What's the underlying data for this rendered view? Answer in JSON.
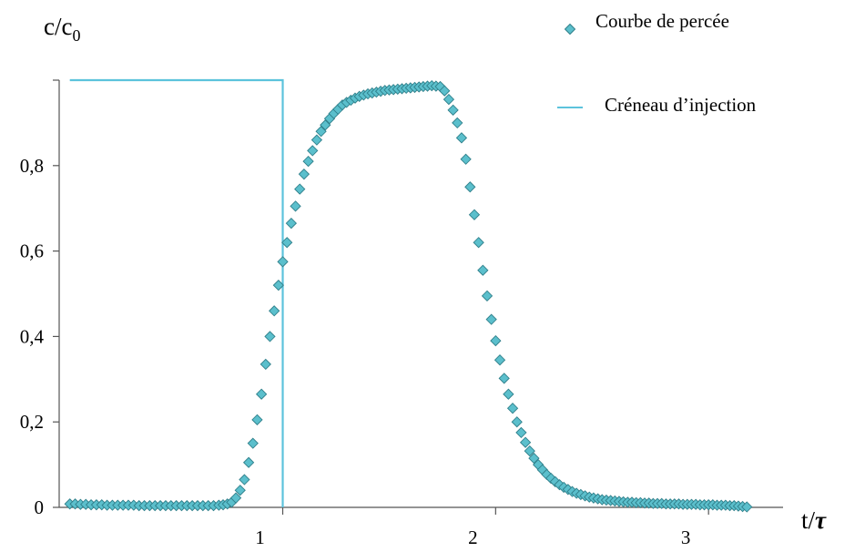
{
  "chart_data": {
    "type": "scatter",
    "ylabel": {
      "base": "c/c",
      "sub": "0"
    },
    "xlabel": {
      "base": "t/",
      "symbol": "τ"
    },
    "xlim": [
      -0.05,
      3.35
    ],
    "ylim": [
      0,
      1.0
    ],
    "x_ticks": [
      {
        "value": 1,
        "label": "1"
      },
      {
        "value": 2,
        "label": "2"
      },
      {
        "value": 3,
        "label": "3"
      }
    ],
    "y_ticks": [
      {
        "value": 0,
        "label": "0"
      },
      {
        "value": 0.2,
        "label": "0,2"
      },
      {
        "value": 0.4,
        "label": "0,4"
      },
      {
        "value": 0.6,
        "label": "0,6"
      },
      {
        "value": 0.8,
        "label": "0,8"
      },
      {
        "value": 1.0,
        "label": ""
      }
    ],
    "grid": false,
    "legend_position": "top-right",
    "colors": {
      "breakthrough_fill": "#5bbfcc",
      "breakthrough_stroke": "#2f7f8a",
      "injection_line": "#5cc3dc",
      "axis": "#555555"
    },
    "series": [
      {
        "name": "Courbe de percée",
        "kind": "scatter",
        "marker": "diamond",
        "points": [
          [
            0.0,
            0.008
          ],
          [
            0.025,
            0.008
          ],
          [
            0.05,
            0.007
          ],
          [
            0.075,
            0.007
          ],
          [
            0.1,
            0.006
          ],
          [
            0.125,
            0.006
          ],
          [
            0.15,
            0.006
          ],
          [
            0.175,
            0.005
          ],
          [
            0.2,
            0.005
          ],
          [
            0.225,
            0.005
          ],
          [
            0.25,
            0.005
          ],
          [
            0.275,
            0.005
          ],
          [
            0.3,
            0.005
          ],
          [
            0.325,
            0.004
          ],
          [
            0.35,
            0.004
          ],
          [
            0.375,
            0.004
          ],
          [
            0.4,
            0.004
          ],
          [
            0.425,
            0.004
          ],
          [
            0.45,
            0.004
          ],
          [
            0.475,
            0.004
          ],
          [
            0.5,
            0.004
          ],
          [
            0.525,
            0.004
          ],
          [
            0.55,
            0.004
          ],
          [
            0.575,
            0.004
          ],
          [
            0.6,
            0.004
          ],
          [
            0.625,
            0.004
          ],
          [
            0.65,
            0.004
          ],
          [
            0.675,
            0.004
          ],
          [
            0.7,
            0.005
          ],
          [
            0.72,
            0.006
          ],
          [
            0.74,
            0.008
          ],
          [
            0.76,
            0.012
          ],
          [
            0.78,
            0.022
          ],
          [
            0.8,
            0.04
          ],
          [
            0.82,
            0.065
          ],
          [
            0.84,
            0.105
          ],
          [
            0.86,
            0.15
          ],
          [
            0.88,
            0.205
          ],
          [
            0.9,
            0.265
          ],
          [
            0.92,
            0.335
          ],
          [
            0.94,
            0.4
          ],
          [
            0.96,
            0.46
          ],
          [
            0.98,
            0.52
          ],
          [
            1.0,
            0.575
          ],
          [
            1.02,
            0.62
          ],
          [
            1.04,
            0.665
          ],
          [
            1.06,
            0.705
          ],
          [
            1.08,
            0.745
          ],
          [
            1.1,
            0.78
          ],
          [
            1.12,
            0.81
          ],
          [
            1.14,
            0.835
          ],
          [
            1.16,
            0.86
          ],
          [
            1.18,
            0.88
          ],
          [
            1.2,
            0.895
          ],
          [
            1.22,
            0.91
          ],
          [
            1.24,
            0.922
          ],
          [
            1.26,
            0.932
          ],
          [
            1.28,
            0.942
          ],
          [
            1.3,
            0.948
          ],
          [
            1.32,
            0.953
          ],
          [
            1.34,
            0.958
          ],
          [
            1.36,
            0.962
          ],
          [
            1.38,
            0.965
          ],
          [
            1.4,
            0.968
          ],
          [
            1.42,
            0.97
          ],
          [
            1.44,
            0.972
          ],
          [
            1.46,
            0.974
          ],
          [
            1.48,
            0.976
          ],
          [
            1.5,
            0.977
          ],
          [
            1.52,
            0.978
          ],
          [
            1.54,
            0.979
          ],
          [
            1.56,
            0.98
          ],
          [
            1.58,
            0.981
          ],
          [
            1.6,
            0.982
          ],
          [
            1.62,
            0.983
          ],
          [
            1.64,
            0.984
          ],
          [
            1.66,
            0.985
          ],
          [
            1.68,
            0.986
          ],
          [
            1.7,
            0.987
          ],
          [
            1.72,
            0.986
          ],
          [
            1.74,
            0.985
          ],
          [
            1.76,
            0.975
          ],
          [
            1.78,
            0.955
          ],
          [
            1.8,
            0.93
          ],
          [
            1.82,
            0.9
          ],
          [
            1.84,
            0.865
          ],
          [
            1.86,
            0.815
          ],
          [
            1.88,
            0.75
          ],
          [
            1.9,
            0.685
          ],
          [
            1.92,
            0.62
          ],
          [
            1.94,
            0.555
          ],
          [
            1.96,
            0.495
          ],
          [
            1.98,
            0.44
          ],
          [
            2.0,
            0.39
          ],
          [
            2.02,
            0.345
          ],
          [
            2.04,
            0.302
          ],
          [
            2.06,
            0.265
          ],
          [
            2.08,
            0.232
          ],
          [
            2.1,
            0.2
          ],
          [
            2.12,
            0.175
          ],
          [
            2.14,
            0.152
          ],
          [
            2.16,
            0.132
          ],
          [
            2.18,
            0.115
          ],
          [
            2.2,
            0.1
          ],
          [
            2.22,
            0.088
          ],
          [
            2.24,
            0.077
          ],
          [
            2.26,
            0.068
          ],
          [
            2.28,
            0.06
          ],
          [
            2.3,
            0.053
          ],
          [
            2.32,
            0.047
          ],
          [
            2.34,
            0.042
          ],
          [
            2.36,
            0.037
          ],
          [
            2.38,
            0.033
          ],
          [
            2.4,
            0.03
          ],
          [
            2.42,
            0.027
          ],
          [
            2.44,
            0.024
          ],
          [
            2.46,
            0.022
          ],
          [
            2.48,
            0.02
          ],
          [
            2.5,
            0.018
          ],
          [
            2.52,
            0.017
          ],
          [
            2.54,
            0.016
          ],
          [
            2.56,
            0.015
          ],
          [
            2.58,
            0.014
          ],
          [
            2.6,
            0.013
          ],
          [
            2.62,
            0.012
          ],
          [
            2.64,
            0.012
          ],
          [
            2.66,
            0.011
          ],
          [
            2.68,
            0.011
          ],
          [
            2.7,
            0.01
          ],
          [
            2.72,
            0.01
          ],
          [
            2.74,
            0.009
          ],
          [
            2.76,
            0.009
          ],
          [
            2.78,
            0.009
          ],
          [
            2.8,
            0.008
          ],
          [
            2.82,
            0.008
          ],
          [
            2.84,
            0.008
          ],
          [
            2.86,
            0.008
          ],
          [
            2.88,
            0.007
          ],
          [
            2.9,
            0.007
          ],
          [
            2.92,
            0.007
          ],
          [
            2.94,
            0.007
          ],
          [
            2.96,
            0.006
          ],
          [
            2.98,
            0.006
          ],
          [
            3.0,
            0.006
          ],
          [
            3.02,
            0.006
          ],
          [
            3.04,
            0.005
          ],
          [
            3.06,
            0.005
          ],
          [
            3.08,
            0.005
          ],
          [
            3.1,
            0.004
          ],
          [
            3.12,
            0.004
          ],
          [
            3.14,
            0.003
          ],
          [
            3.16,
            0.002
          ],
          [
            3.18,
            0.001
          ]
        ]
      },
      {
        "name": "Créneau d’injection",
        "kind": "line",
        "points": [
          [
            0.0,
            1.0
          ],
          [
            1.0,
            1.0
          ],
          [
            1.0,
            0.0
          ]
        ]
      }
    ]
  }
}
